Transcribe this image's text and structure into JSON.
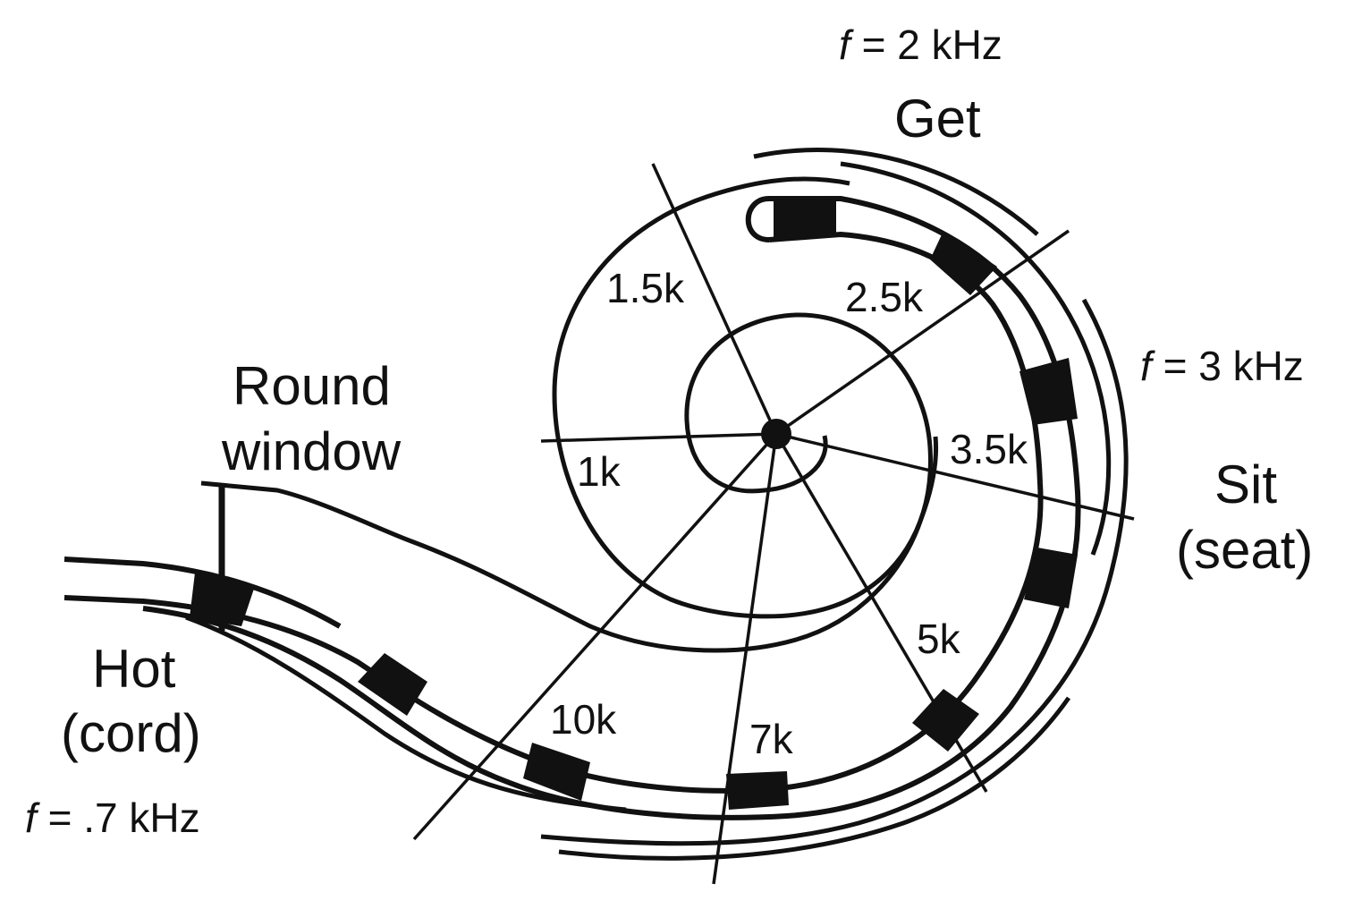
{
  "colors": {
    "ink": "#111111",
    "background": "#ffffff"
  },
  "frequency_labels": {
    "f_symbol": "f",
    "top": "= 2 kHz",
    "right": "= 3 kHz",
    "left": "= .7 kHz"
  },
  "word_labels": {
    "get": "Get",
    "sit": "Sit",
    "seat": "(seat)",
    "hot": "Hot",
    "cord": "(cord)",
    "round": "Round",
    "window": "window"
  },
  "ray_labels": {
    "k1": "1k",
    "k1_5": "1.5k",
    "k2_5": "2.5k",
    "k3_5": "3.5k",
    "k5": "5k",
    "k7": "7k",
    "k10": "10k"
  }
}
